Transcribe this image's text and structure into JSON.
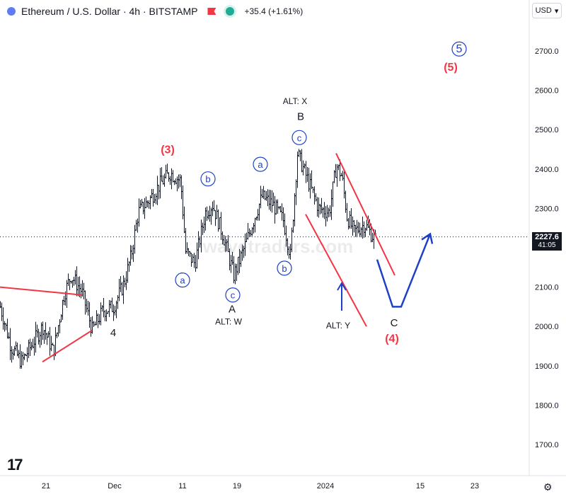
{
  "header": {
    "symbol_title": "Ethereum / U.S. Dollar · 4h · BITSTAMP",
    "change_text": "+35.4 (+1.61%)"
  },
  "currency_label": "USD",
  "current_price": {
    "price": "2227.6",
    "countdown": "41:05"
  },
  "watermark": "wavetraders.com",
  "tv_logo": "17",
  "chart_data": {
    "type": "candlestick",
    "y_axis": {
      "ticks": [
        1700,
        1800,
        1900,
        2000,
        2100,
        2200,
        2300,
        2400,
        2500,
        2600,
        2700
      ],
      "ylim": [
        1650,
        2780
      ]
    },
    "x_axis": {
      "labels": [
        "21",
        "Dec",
        "11",
        "19",
        "2024",
        "15",
        "23"
      ]
    },
    "series": [
      {
        "ohlc_points": [
          [
            0,
            2050
          ],
          [
            15,
            1950
          ],
          [
            30,
            1910
          ],
          [
            45,
            1955
          ],
          [
            60,
            2000
          ],
          [
            75,
            1935
          ],
          [
            90,
            2080
          ],
          [
            100,
            2130
          ],
          [
            115,
            2090
          ],
          [
            130,
            1990
          ],
          [
            145,
            2040
          ],
          [
            160,
            2050
          ],
          [
            175,
            2110
          ],
          [
            185,
            2180
          ],
          [
            195,
            2290
          ],
          [
            210,
            2320
          ],
          [
            225,
            2360
          ],
          [
            240,
            2390
          ],
          [
            255,
            2370
          ],
          [
            262,
            2190
          ],
          [
            275,
            2160
          ],
          [
            290,
            2290
          ],
          [
            300,
            2310
          ],
          [
            315,
            2230
          ],
          [
            330,
            2130
          ],
          [
            345,
            2200
          ],
          [
            360,
            2280
          ],
          [
            370,
            2330
          ],
          [
            385,
            2310
          ],
          [
            400,
            2270
          ],
          [
            410,
            2180
          ],
          [
            420,
            2440
          ],
          [
            435,
            2370
          ],
          [
            450,
            2300
          ],
          [
            465,
            2290
          ],
          [
            475,
            2410
          ],
          [
            483,
            2380
          ],
          [
            490,
            2280
          ],
          [
            500,
            2240
          ],
          [
            515,
            2260
          ],
          [
            530,
            2220
          ]
        ]
      }
    ],
    "wave_labels": [
      {
        "text": "(3)",
        "color": "#f23645",
        "t": 237,
        "p": 2440
      },
      {
        "text": "b",
        "circled": true,
        "t": 294,
        "p": 2375
      },
      {
        "text": "a",
        "circled": true,
        "t": 258,
        "p": 2118
      },
      {
        "text": "c",
        "circled": true,
        "t": 329,
        "p": 2080
      },
      {
        "text": "A",
        "t": 328,
        "p": 2035
      },
      {
        "text": "ALT: W",
        "t": 323,
        "p": 2005
      },
      {
        "text": "a",
        "circled": true,
        "t": 368,
        "p": 2412
      },
      {
        "text": "b",
        "circled": true,
        "t": 402,
        "p": 2148
      },
      {
        "text": "ALT: X",
        "t": 417,
        "p": 2565
      },
      {
        "text": "B",
        "t": 425,
        "p": 2525
      },
      {
        "text": "c",
        "circled": true,
        "t": 423,
        "p": 2480
      },
      {
        "text": "ALT: Y",
        "t": 478,
        "p": 1995
      },
      {
        "text": "C",
        "t": 557,
        "p": 2000
      },
      {
        "text": "(4)",
        "color": "#f23645",
        "t": 554,
        "p": 1960
      },
      {
        "text": "4",
        "t": 160,
        "p": 1975
      },
      {
        "text": "(5)",
        "color": "#f23645",
        "t": 637,
        "p": 2650
      },
      {
        "text": "5",
        "circled": true,
        "t": 649,
        "p": 2705
      }
    ],
    "trendlines_red": [
      [
        [
          0,
          2100
        ],
        [
          116,
          2080
        ]
      ],
      [
        [
          60,
          1910
        ],
        [
          130,
          1990
        ]
      ],
      [
        [
          475,
          2440
        ],
        [
          558,
          2130
        ]
      ],
      [
        [
          432,
          2285
        ],
        [
          518,
          2000
        ]
      ]
    ],
    "projection_blue": [
      [
        533,
        2170
      ],
      [
        555,
        2050
      ],
      [
        567,
        2050
      ],
      [
        608,
        2235
      ]
    ],
    "arrow_blue": [
      [
        483,
        2040
      ],
      [
        483,
        2110
      ]
    ],
    "current_line_price": 2227.6
  }
}
